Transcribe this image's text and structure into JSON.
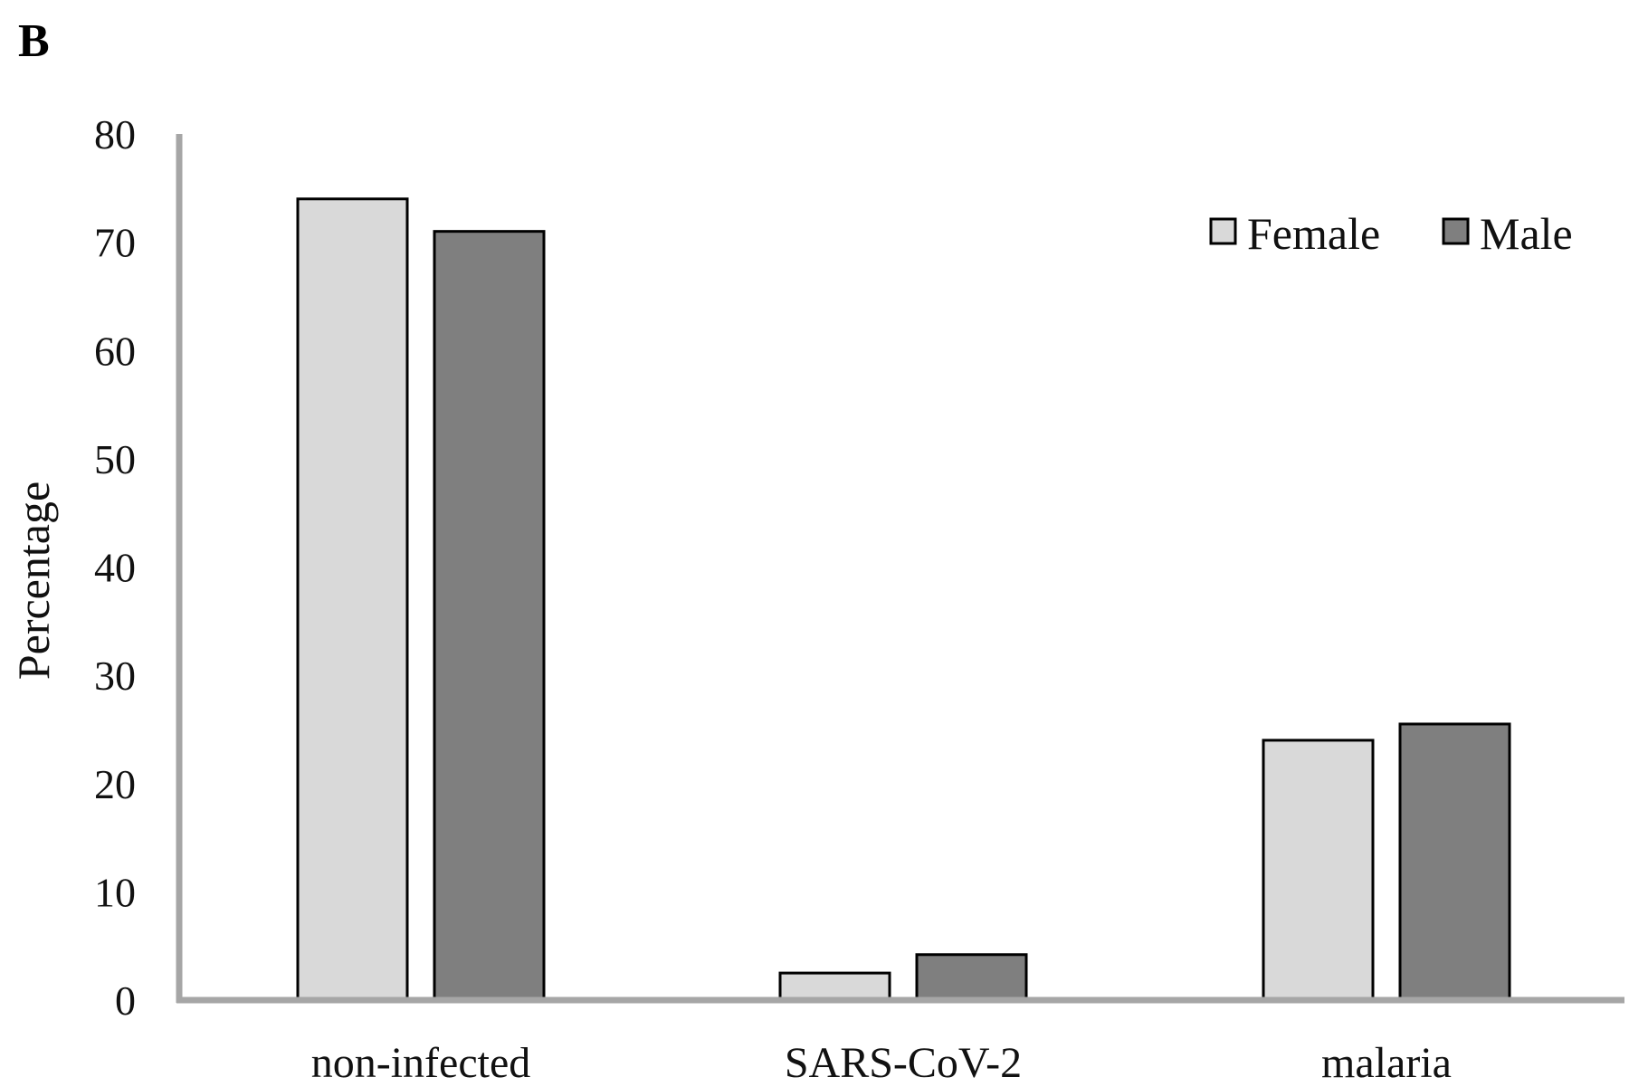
{
  "panel_label": "B",
  "chart_data": {
    "type": "bar",
    "title": "",
    "xlabel": "",
    "ylabel": "Percentage",
    "ylim": [
      0,
      80
    ],
    "yticks": [
      0,
      10,
      20,
      30,
      40,
      50,
      60,
      70,
      80
    ],
    "grid": false,
    "legend_position": "top-right",
    "categories": [
      "non-infected",
      "SARS-CoV-2",
      "malaria"
    ],
    "series": [
      {
        "name": "Female",
        "color": "#d9d9d9",
        "values": [
          74.0,
          2.5,
          24.0
        ]
      },
      {
        "name": "Male",
        "color": "#7f7f7f",
        "values": [
          71.0,
          4.2,
          25.5
        ]
      }
    ]
  }
}
